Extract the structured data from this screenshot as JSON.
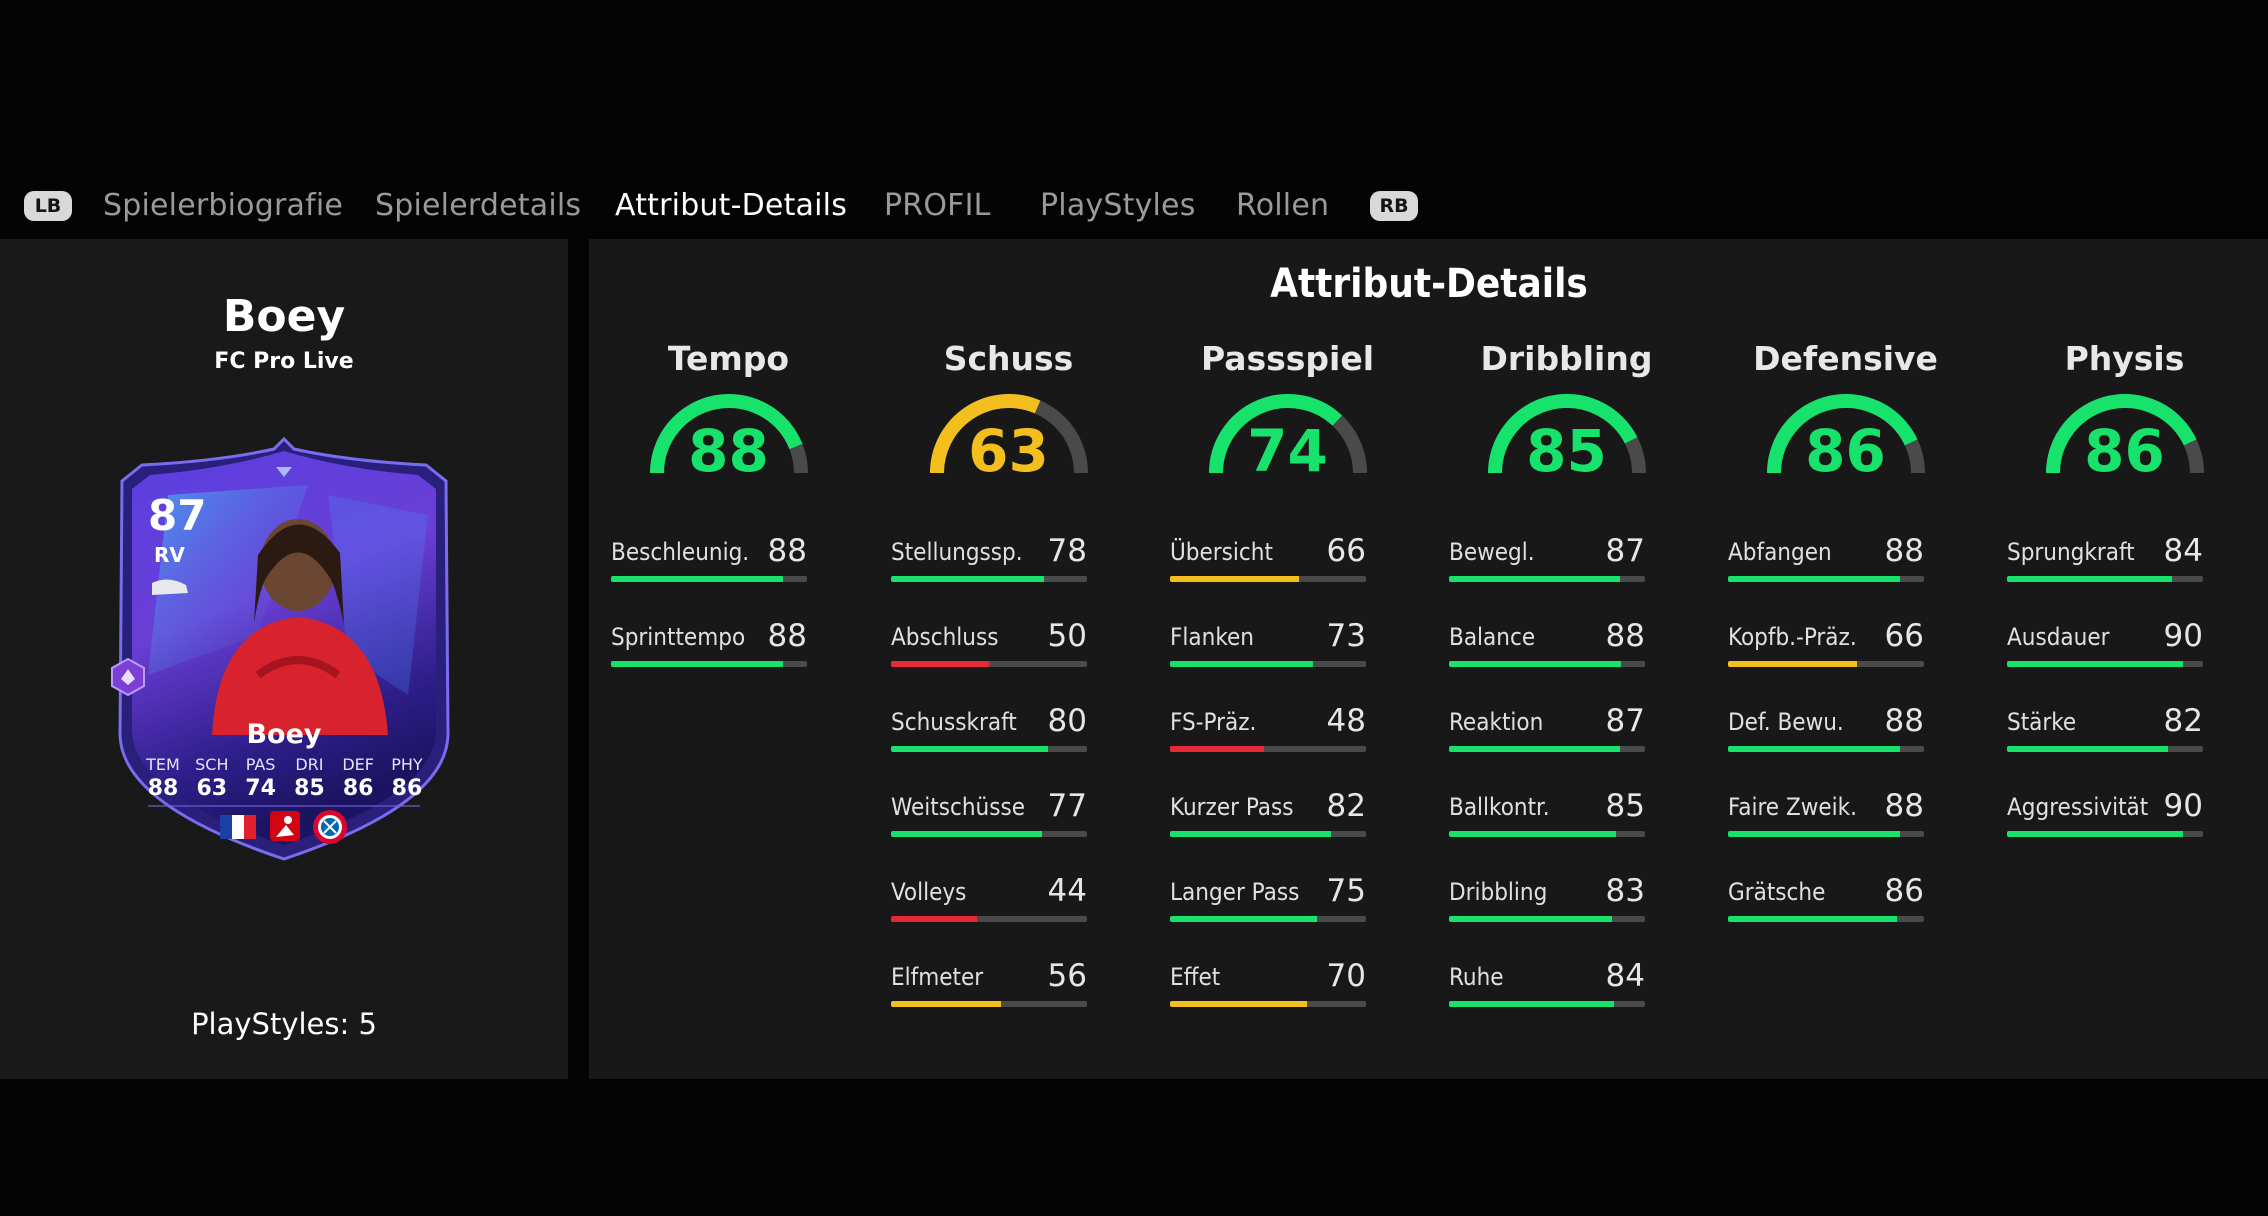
{
  "tabs": {
    "left_button": "LB",
    "right_button": "RB",
    "items": [
      {
        "label": "Spielerbiografie",
        "active": false
      },
      {
        "label": "Spielerdetails",
        "active": false
      },
      {
        "label": "Attribut-Details",
        "active": true
      },
      {
        "label": "PROFIL",
        "active": false
      },
      {
        "label": "PlayStyles",
        "active": false
      },
      {
        "label": "Rollen",
        "active": false
      }
    ]
  },
  "player": {
    "name": "Boey",
    "subtitle": "FC Pro Live",
    "playstyles_label": "PlayStyles: 5",
    "card": {
      "overall": "87",
      "position": "RV",
      "name": "Boey",
      "stats": [
        {
          "label": "TEM",
          "value": "88"
        },
        {
          "label": "SCH",
          "value": "63"
        },
        {
          "label": "PAS",
          "value": "74"
        },
        {
          "label": "DRI",
          "value": "85"
        },
        {
          "label": "DEF",
          "value": "86"
        },
        {
          "label": "PHY",
          "value": "86"
        }
      ],
      "icons": [
        "boot-icon",
        "flag-france-icon",
        "bundesliga-logo",
        "fc-bayern-logo",
        "fc-pro-badge-icon"
      ]
    }
  },
  "attributes": {
    "title": "Attribut-Details",
    "colors": {
      "high": "#17e36c",
      "mid": "#f2bf1f",
      "low": "#e52a35",
      "track": "#4a4a4a"
    },
    "categories": [
      {
        "name": "Tempo",
        "value": 88,
        "color": "#17e36c",
        "subs": [
          {
            "label": "Beschleunig.",
            "value": 88,
            "color": "#17e36c"
          },
          {
            "label": "Sprinttempo",
            "value": 88,
            "color": "#17e36c"
          }
        ]
      },
      {
        "name": "Schuss",
        "value": 63,
        "color": "#f2bf1f",
        "subs": [
          {
            "label": "Stellungssp.",
            "value": 78,
            "color": "#17e36c"
          },
          {
            "label": "Abschluss",
            "value": 50,
            "color": "#e52a35"
          },
          {
            "label": "Schusskraft",
            "value": 80,
            "color": "#17e36c"
          },
          {
            "label": "Weitschüsse",
            "value": 77,
            "color": "#17e36c"
          },
          {
            "label": "Volleys",
            "value": 44,
            "color": "#e52a35"
          },
          {
            "label": "Elfmeter",
            "value": 56,
            "color": "#f2bf1f"
          }
        ]
      },
      {
        "name": "Passspiel",
        "value": 74,
        "color": "#17e36c",
        "subs": [
          {
            "label": "Übersicht",
            "value": 66,
            "color": "#f2bf1f"
          },
          {
            "label": "Flanken",
            "value": 73,
            "color": "#17e36c"
          },
          {
            "label": "FS-Präz.",
            "value": 48,
            "color": "#e52a35"
          },
          {
            "label": "Kurzer Pass",
            "value": 82,
            "color": "#17e36c"
          },
          {
            "label": "Langer Pass",
            "value": 75,
            "color": "#17e36c"
          },
          {
            "label": "Effet",
            "value": 70,
            "color": "#f2bf1f"
          }
        ]
      },
      {
        "name": "Dribbling",
        "value": 85,
        "color": "#17e36c",
        "subs": [
          {
            "label": "Bewegl.",
            "value": 87,
            "color": "#17e36c"
          },
          {
            "label": "Balance",
            "value": 88,
            "color": "#17e36c"
          },
          {
            "label": "Reaktion",
            "value": 87,
            "color": "#17e36c"
          },
          {
            "label": "Ballkontr.",
            "value": 85,
            "color": "#17e36c"
          },
          {
            "label": "Dribbling",
            "value": 83,
            "color": "#17e36c"
          },
          {
            "label": "Ruhe",
            "value": 84,
            "color": "#17e36c"
          }
        ]
      },
      {
        "name": "Defensive",
        "value": 86,
        "color": "#17e36c",
        "subs": [
          {
            "label": "Abfangen",
            "value": 88,
            "color": "#17e36c"
          },
          {
            "label": "Kopfb.-Präz.",
            "value": 66,
            "color": "#f2bf1f"
          },
          {
            "label": "Def. Bewu.",
            "value": 88,
            "color": "#17e36c"
          },
          {
            "label": "Faire Zweik.",
            "value": 88,
            "color": "#17e36c"
          },
          {
            "label": "Grätsche",
            "value": 86,
            "color": "#17e36c"
          }
        ]
      },
      {
        "name": "Physis",
        "value": 86,
        "color": "#17e36c",
        "subs": [
          {
            "label": "Sprungkraft",
            "value": 84,
            "color": "#17e36c"
          },
          {
            "label": "Ausdauer",
            "value": 90,
            "color": "#17e36c"
          },
          {
            "label": "Stärke",
            "value": 82,
            "color": "#17e36c"
          },
          {
            "label": "Aggressivität",
            "value": 90,
            "color": "#17e36c"
          }
        ]
      }
    ]
  }
}
